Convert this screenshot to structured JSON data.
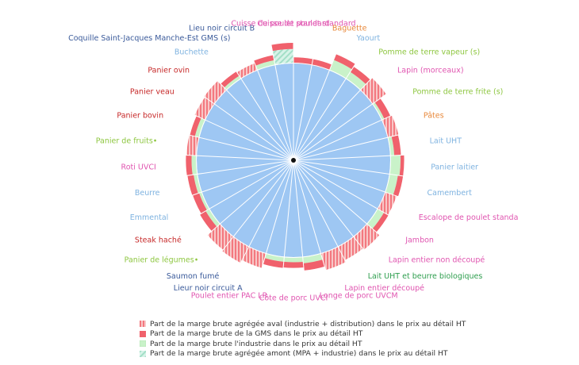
{
  "colors": {
    "aval": "#f3787f",
    "aval_stripe": "#f8c7c7",
    "gms": "#f0616c",
    "industrie": "#c9f2c9",
    "amont": "#d7f3e8",
    "amont_stripe": "#a3dfc7",
    "base": "#9ec7f3",
    "grid": "#ffffff"
  },
  "legend": [
    "Part de la marge brute agrégée aval (industrie + distribution) dans le prix au détail HT",
    "Part de la marge brute de la GMS dans le prix au détail HT",
    "Part de la marge brute l'industrie dans le prix au détail HT",
    "Part de la marge brute agrégée amont (MPA + industrie) dans le prix au détail HT"
  ],
  "chart_data": {
    "type": "polar-bar",
    "ring_scale_max": 100,
    "categories": [
      {
        "label": "Cuisse de poulet standard",
        "color": "#e055b0",
        "segments": [
          {
            "t": "gms",
            "v": 12
          }
        ]
      },
      {
        "label": "Baguette",
        "color": "#e8883a",
        "segments": [
          {
            "t": "gms",
            "v": 12
          }
        ]
      },
      {
        "label": "Yaourt",
        "color": "#7fb3e0",
        "segments": [
          {
            "t": "industrie",
            "v": 22
          },
          {
            "t": "gms",
            "v": 12
          }
        ]
      },
      {
        "label": "Pomme de terre vapeur (s)",
        "color": "#8dc63f",
        "segments": [
          {
            "t": "industrie",
            "v": 16
          },
          {
            "t": "gms",
            "v": 12
          }
        ]
      },
      {
        "label": "Lapin (morceaux)",
        "color": "#e055b0",
        "segments": [
          {
            "t": "aval",
            "v": 33
          }
        ]
      },
      {
        "label": "Pomme de terre frite (s)",
        "color": "#8dc63f",
        "segments": [
          {
            "t": "industrie",
            "v": 6
          },
          {
            "t": "gms",
            "v": 13
          }
        ]
      },
      {
        "label": "Pâtes",
        "color": "#e8883a",
        "segments": [
          {
            "t": "aval",
            "v": 22
          }
        ]
      },
      {
        "label": "Lait UHT",
        "color": "#7fb3e0",
        "segments": [
          {
            "t": "industrie",
            "v": 8
          },
          {
            "t": "gms",
            "v": 13
          }
        ]
      },
      {
        "label": "Panier laitier",
        "color": "#7fb3e0",
        "segments": [
          {
            "t": "industrie",
            "v": 20
          },
          {
            "t": "gms",
            "v": 7
          }
        ]
      },
      {
        "label": "Camembert",
        "color": "#7fb3e0",
        "segments": [
          {
            "t": "industrie",
            "v": 17
          },
          {
            "t": "gms",
            "v": 10
          }
        ]
      },
      {
        "label": "Escalope de poulet standa",
        "color": "#e055b0",
        "segments": [
          {
            "t": "aval",
            "v": 24
          }
        ]
      },
      {
        "label": "Jambon",
        "color": "#e055b0",
        "segments": [
          {
            "t": "industrie",
            "v": 15
          },
          {
            "t": "gms",
            "v": 10
          }
        ]
      },
      {
        "label": "Lapin entier non découpé",
        "color": "#e055b0",
        "segments": [
          {
            "t": "aval",
            "v": 33
          }
        ]
      },
      {
        "label": "Lait UHT et beurre biologiques",
        "color": "#2e9e4e",
        "segments": [
          {
            "t": "aval",
            "v": 30
          }
        ]
      },
      {
        "label": "Lapin entier découpé",
        "color": "#e055b0",
        "segments": [
          {
            "t": "aval",
            "v": 34
          }
        ]
      },
      {
        "label": "Longe de porc UVCM",
        "color": "#e055b0",
        "segments": [
          {
            "t": "industrie",
            "v": 13
          },
          {
            "t": "gms",
            "v": 14
          }
        ]
      },
      {
        "label": "Côte de porc UVCI",
        "color": "#e055b0",
        "segments": [
          {
            "t": "industrie",
            "v": 10
          },
          {
            "t": "gms",
            "v": 11
          }
        ]
      },
      {
        "label": "Poulet entier PAC LR",
        "color": "#e055b0",
        "segments": [
          {
            "t": "industrie",
            "v": 10
          },
          {
            "t": "gms",
            "v": 12
          }
        ]
      },
      {
        "label": "Lieur noir circuit A",
        "color": "#3a5a9a",
        "segments": [
          {
            "t": "aval",
            "v": 30
          }
        ]
      },
      {
        "label": "Saumon fumé",
        "color": "#3a5a9a",
        "segments": [
          {
            "t": "aval",
            "v": 36
          }
        ]
      },
      {
        "label": "Panier de légumes",
        "color": "#8dc63f",
        "marker": "•",
        "segments": [
          {
            "t": "aval",
            "v": 33
          }
        ]
      },
      {
        "label": "Steak haché",
        "color": "#c62828",
        "segments": [
          {
            "t": "industrie",
            "v": 9
          },
          {
            "t": "gms",
            "v": 13
          }
        ]
      },
      {
        "label": "Emmental",
        "color": "#7fb3e0",
        "segments": [
          {
            "t": "industrie",
            "v": 6
          },
          {
            "t": "gms",
            "v": 13
          }
        ]
      },
      {
        "label": "Beurre",
        "color": "#7fb3e0",
        "segments": [
          {
            "t": "industrie",
            "v": 8
          },
          {
            "t": "gms",
            "v": 12
          }
        ]
      },
      {
        "label": "Roti UVCI",
        "color": "#e055b0",
        "segments": [
          {
            "t": "industrie",
            "v": 10
          },
          {
            "t": "gms",
            "v": 11
          }
        ]
      },
      {
        "label": "Panier de fruits",
        "color": "#8dc63f",
        "marker": "•",
        "segments": [
          {
            "t": "aval",
            "v": 20
          }
        ]
      },
      {
        "label": "Panier bovin",
        "color": "#c62828",
        "segments": [
          {
            "t": "industrie",
            "v": 9
          },
          {
            "t": "gms",
            "v": 10
          }
        ]
      },
      {
        "label": "Panier veau",
        "color": "#c62828",
        "segments": [
          {
            "t": "aval",
            "v": 23
          }
        ]
      },
      {
        "label": "Panier ovin",
        "color": "#c62828",
        "segments": [
          {
            "t": "aval",
            "v": 25
          }
        ]
      },
      {
        "label": "Buchette",
        "color": "#7fb3e0",
        "segments": [
          {
            "t": "industrie",
            "v": 7
          },
          {
            "t": "gms",
            "v": 10
          }
        ]
      },
      {
        "label": "Coquille Saint-Jacques Manche-Est GMS (s)",
        "color": "#3a5a9a",
        "segments": [
          {
            "t": "aval",
            "v": 15
          }
        ]
      },
      {
        "label": "Lieu noir circuit B",
        "color": "#3a5a9a",
        "segments": [
          {
            "t": "industrie",
            "v": 10
          },
          {
            "t": "gms",
            "v": 10
          }
        ]
      },
      {
        "label": "Cuisse de poulet standard",
        "color": "#e055b0",
        "segments": [
          {
            "t": "amont",
            "v": 28
          },
          {
            "t": "gms",
            "v": 12
          }
        ]
      }
    ]
  }
}
